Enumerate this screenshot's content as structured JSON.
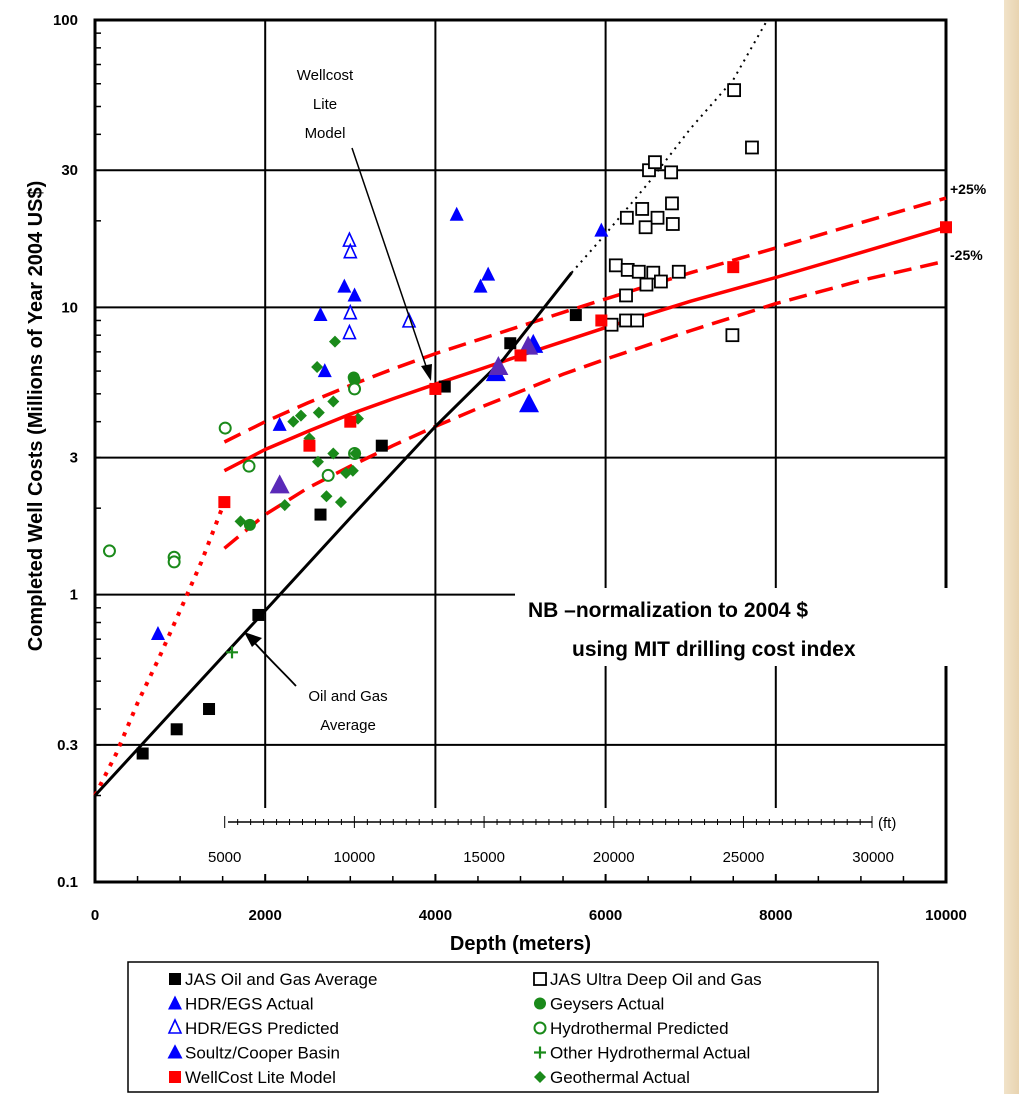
{
  "chart_data": {
    "type": "scatter",
    "xlabel": "Depth (meters)",
    "ylabel": "Completed Well Costs (Millions of Year 2004 US$)",
    "xlim": [
      0,
      10000
    ],
    "ylim": [
      0.1,
      100
    ],
    "y_scale": "log",
    "grid": true,
    "x_ticks": [
      0,
      2000,
      4000,
      6000,
      8000,
      10000
    ],
    "y_ticks": [
      {
        "value": 0.1,
        "label": "0.1"
      },
      {
        "value": 0.3,
        "label": "0.3"
      },
      {
        "value": 1,
        "label": "1"
      },
      {
        "value": 3,
        "label": "3"
      },
      {
        "value": 10,
        "label": "10"
      },
      {
        "value": 30,
        "label": "30"
      },
      {
        "value": 100,
        "label": "100"
      }
    ],
    "secondary_x_axis": {
      "unit_label": "(ft)",
      "ticks": [
        {
          "label": "5000",
          "ft": 5000
        },
        {
          "label": "10000",
          "ft": 10000
        },
        {
          "label": "15000",
          "ft": 15000
        },
        {
          "label": "20000",
          "ft": 20000
        },
        {
          "label": "25000",
          "ft": 25000
        },
        {
          "label": "30000",
          "ft": 30000
        }
      ]
    },
    "series": [
      {
        "name": "JAS Oil and Gas Average",
        "marker": "square-filled",
        "color": "#000000",
        "points": [
          [
            560,
            0.28
          ],
          [
            960,
            0.34
          ],
          [
            1340,
            0.4
          ],
          [
            1920,
            0.85
          ],
          [
            2650,
            1.9
          ],
          [
            3370,
            3.3
          ],
          [
            4110,
            5.3
          ],
          [
            4880,
            7.5
          ],
          [
            5650,
            9.4
          ]
        ]
      },
      {
        "name": "JAS Ultra Deep Oil and Gas",
        "marker": "square-open",
        "color": "#000000",
        "points": [
          [
            6120,
            14
          ],
          [
            6260,
            13.5
          ],
          [
            6390,
            13.3
          ],
          [
            6560,
            13.2
          ],
          [
            6860,
            13.3
          ],
          [
            6480,
            12
          ],
          [
            6650,
            12.3
          ],
          [
            6240,
            11
          ],
          [
            6070,
            8.7
          ],
          [
            6240,
            9
          ],
          [
            6370,
            9
          ],
          [
            6250,
            20.5
          ],
          [
            6430,
            22
          ],
          [
            6610,
            20.5
          ],
          [
            6790,
            19.5
          ],
          [
            6780,
            23
          ],
          [
            6470,
            19
          ],
          [
            6510,
            30
          ],
          [
            6580,
            32
          ],
          [
            6770,
            29.5
          ],
          [
            7510,
            57
          ],
          [
            7720,
            36
          ],
          [
            7490,
            8
          ]
        ]
      },
      {
        "name": "HDR/EGS Actual",
        "marker": "triangle-filled",
        "color": "#0000ff",
        "points": [
          [
            740,
            0.73
          ],
          [
            2170,
            3.9
          ],
          [
            2650,
            9.4
          ],
          [
            2700,
            6
          ],
          [
            2930,
            11.8
          ],
          [
            3050,
            11
          ],
          [
            4250,
            21
          ],
          [
            4530,
            11.8
          ],
          [
            4620,
            13
          ],
          [
            5950,
            18.5
          ]
        ]
      },
      {
        "name": "HDR/EGS Predicted",
        "marker": "triangle-open",
        "color": "#0000ff",
        "points": [
          [
            2990,
            17
          ],
          [
            3000,
            15.5
          ],
          [
            3000,
            9.5
          ],
          [
            2990,
            8.1
          ],
          [
            3690,
            8.9
          ]
        ]
      },
      {
        "name": "Soultz/Cooper Basin",
        "marker": "triangle-large",
        "color": "#0000ff",
        "points": [
          [
            5100,
            4.6
          ],
          [
            5150,
            7.4
          ],
          [
            4710,
            5.9
          ]
        ]
      },
      {
        "name": "Soultz/Cooper Basin (overlap)",
        "marker": "triangle-large",
        "color": "#5a2ab8",
        "points": [
          [
            2170,
            2.4
          ],
          [
            4740,
            6.2
          ],
          [
            5090,
            7.3
          ]
        ]
      },
      {
        "name": "Geysers Actual",
        "marker": "circle-filled",
        "color": "#1a8a1a",
        "points": [
          [
            1820,
            1.75
          ],
          [
            3040,
            5.7
          ],
          [
            3050,
            5.6
          ]
        ]
      },
      {
        "name": "Hydrothermal Predicted",
        "marker": "circle-open",
        "color": "#1a8a1a",
        "points": [
          [
            170,
            1.42
          ],
          [
            930,
            1.35
          ],
          [
            930,
            1.3
          ],
          [
            1530,
            3.8
          ],
          [
            1810,
            2.8
          ],
          [
            2740,
            2.6
          ],
          [
            3050,
            5.2
          ],
          [
            3050,
            3.1
          ]
        ]
      },
      {
        "name": "Other Hydrothermal Actual",
        "marker": "plus",
        "color": "#1a8a1a",
        "points": [
          [
            1610,
            0.63
          ]
        ]
      },
      {
        "name": "Geothermal Actual",
        "marker": "diamond-filled",
        "color": "#1a8a1a",
        "points": [
          [
            2330,
            4
          ],
          [
            2420,
            4.2
          ],
          [
            2520,
            3.5
          ],
          [
            2620,
            2.9
          ],
          [
            2610,
            6.2
          ],
          [
            2630,
            4.3
          ],
          [
            2800,
            4.7
          ],
          [
            2800,
            3.1
          ],
          [
            2820,
            7.6
          ],
          [
            2890,
            2.1
          ],
          [
            2950,
            2.65
          ],
          [
            3030,
            2.7
          ],
          [
            3060,
            3.1
          ],
          [
            3090,
            4.1
          ],
          [
            2720,
            2.2
          ],
          [
            2230,
            2.05
          ],
          [
            1710,
            1.8
          ]
        ]
      },
      {
        "name": "WellCost Lite Model",
        "marker": "square-filled",
        "color": "#ff0000",
        "points": [
          [
            1520,
            2.1
          ],
          [
            2520,
            3.3
          ],
          [
            3000,
            4
          ],
          [
            4000,
            5.2
          ],
          [
            5000,
            6.8
          ],
          [
            5950,
            9
          ],
          [
            7500,
            13.8
          ],
          [
            10000,
            19
          ]
        ]
      }
    ],
    "curves": [
      {
        "name": "WellCost Lite Model",
        "style": "solid",
        "color": "#ff0000",
        "points": [
          [
            1520,
            2.7
          ],
          [
            2000,
            3.2
          ],
          [
            2500,
            3.7
          ],
          [
            3000,
            4.25
          ],
          [
            3500,
            4.8
          ],
          [
            4000,
            5.4
          ],
          [
            4500,
            6.05
          ],
          [
            5000,
            6.8
          ],
          [
            5500,
            7.6
          ],
          [
            6000,
            8.5
          ],
          [
            7000,
            10.5
          ],
          [
            8000,
            12.7
          ],
          [
            9000,
            15.5
          ],
          [
            10000,
            19
          ]
        ]
      },
      {
        "name": "+25%",
        "style": "dashed",
        "color": "#ff0000",
        "points": [
          [
            1520,
            3.4
          ],
          [
            2000,
            4
          ],
          [
            2500,
            4.65
          ],
          [
            3000,
            5.35
          ],
          [
            3500,
            6.1
          ],
          [
            4000,
            6.9
          ],
          [
            4500,
            7.7
          ],
          [
            5000,
            8.6
          ],
          [
            5500,
            9.6
          ],
          [
            6000,
            10.7
          ],
          [
            7000,
            13.2
          ],
          [
            8000,
            16.1
          ],
          [
            9000,
            19.7
          ],
          [
            10000,
            24
          ]
        ]
      },
      {
        "name": "-25%",
        "style": "dashed",
        "color": "#ff0000",
        "points": [
          [
            1520,
            1.45
          ],
          [
            2000,
            1.9
          ],
          [
            2500,
            2.35
          ],
          [
            3000,
            2.8
          ],
          [
            3500,
            3.3
          ],
          [
            4000,
            3.85
          ],
          [
            4500,
            4.45
          ],
          [
            5000,
            5.1
          ],
          [
            5500,
            5.85
          ],
          [
            6000,
            6.6
          ],
          [
            7000,
            8.3
          ],
          [
            8000,
            10.3
          ],
          [
            9000,
            12.4
          ],
          [
            10000,
            14.5
          ]
        ]
      },
      {
        "name": "Hydrothermal trend",
        "style": "dotted",
        "color": "#ff0000",
        "points": [
          [
            0,
            0.2
          ],
          [
            250,
            0.28
          ],
          [
            500,
            0.42
          ],
          [
            750,
            0.6
          ],
          [
            1000,
            0.88
          ],
          [
            1250,
            1.3
          ],
          [
            1520,
            2.1
          ]
        ]
      },
      {
        "name": "Oil and Gas Average",
        "style": "solid",
        "color": "#000000",
        "points": [
          [
            0,
            0.2
          ],
          [
            1000,
            0.42
          ],
          [
            2000,
            0.88
          ],
          [
            3000,
            1.85
          ],
          [
            4000,
            3.85
          ],
          [
            4800,
            6.6
          ],
          [
            5600,
            13.2
          ]
        ]
      },
      {
        "name": "Ultra deep trend",
        "style": "dotted",
        "color": "#000000",
        "points": [
          [
            5600,
            13.2
          ],
          [
            6000,
            18
          ],
          [
            6500,
            27
          ],
          [
            7000,
            42
          ],
          [
            7500,
            62
          ],
          [
            7900,
            100
          ]
        ]
      }
    ],
    "annotations": [
      {
        "text_lines": [
          "Wellcost",
          "Lite",
          "Model"
        ]
      },
      {
        "text_lines": [
          "Oil and Gas",
          "Average"
        ]
      },
      {
        "text": "+25%"
      },
      {
        "text": "-25%"
      },
      {
        "text_lines": [
          "NB –normalization  to 2004 $",
          "using MIT drilling cost  index"
        ]
      }
    ],
    "legend": {
      "placement": "bottom",
      "columns": [
        [
          "JAS Oil and Gas Average",
          "HDR/EGS Actual",
          "HDR/EGS Predicted",
          "Soultz/Cooper Basin",
          "WellCost Lite Model"
        ],
        [
          "JAS Ultra Deep Oil and Gas",
          "Geysers Actual",
          "Hydrothermal Predicted",
          "Other Hydrothermal Actual",
          "Geothermal Actual"
        ]
      ]
    }
  }
}
